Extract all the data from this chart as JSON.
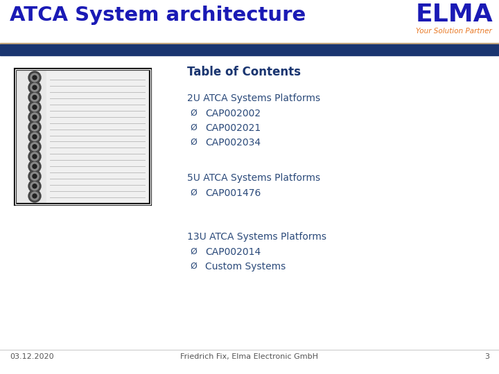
{
  "title": "ATCA System architecture",
  "title_color": "#1a1ab5",
  "elma_text": "ELMA",
  "elma_color": "#1a1ab5",
  "subtitle_elma": "Your Solution Partner",
  "subtitle_elma_color": "#e87722",
  "header_bar_color": "#1a3570",
  "header_line_color": "#c8a87a",
  "toc_title": "Table of Contents",
  "toc_title_color": "#1a3570",
  "content_color": "#2b4a7a",
  "sections": [
    {
      "header": "2U ATCA Systems Platforms",
      "items": [
        "CAP002002",
        "CAP002021",
        "CAP002034"
      ]
    },
    {
      "header": "5U ATCA Systems Platforms",
      "items": [
        "CAP001476"
      ]
    },
    {
      "header": "13U ATCA Systems Platforms",
      "items": [
        "CAP002014",
        "Custom Systems"
      ]
    }
  ],
  "footer_date": "03.12.2020",
  "footer_center": "Friedrich Fix, Elma Electronic GmbH",
  "footer_page": "3",
  "footer_color": "#555555",
  "bg_color": "#ffffff",
  "left_bar_color": "#1a3570",
  "img_box_color": "#cccccc",
  "img_border_color": "#555555"
}
